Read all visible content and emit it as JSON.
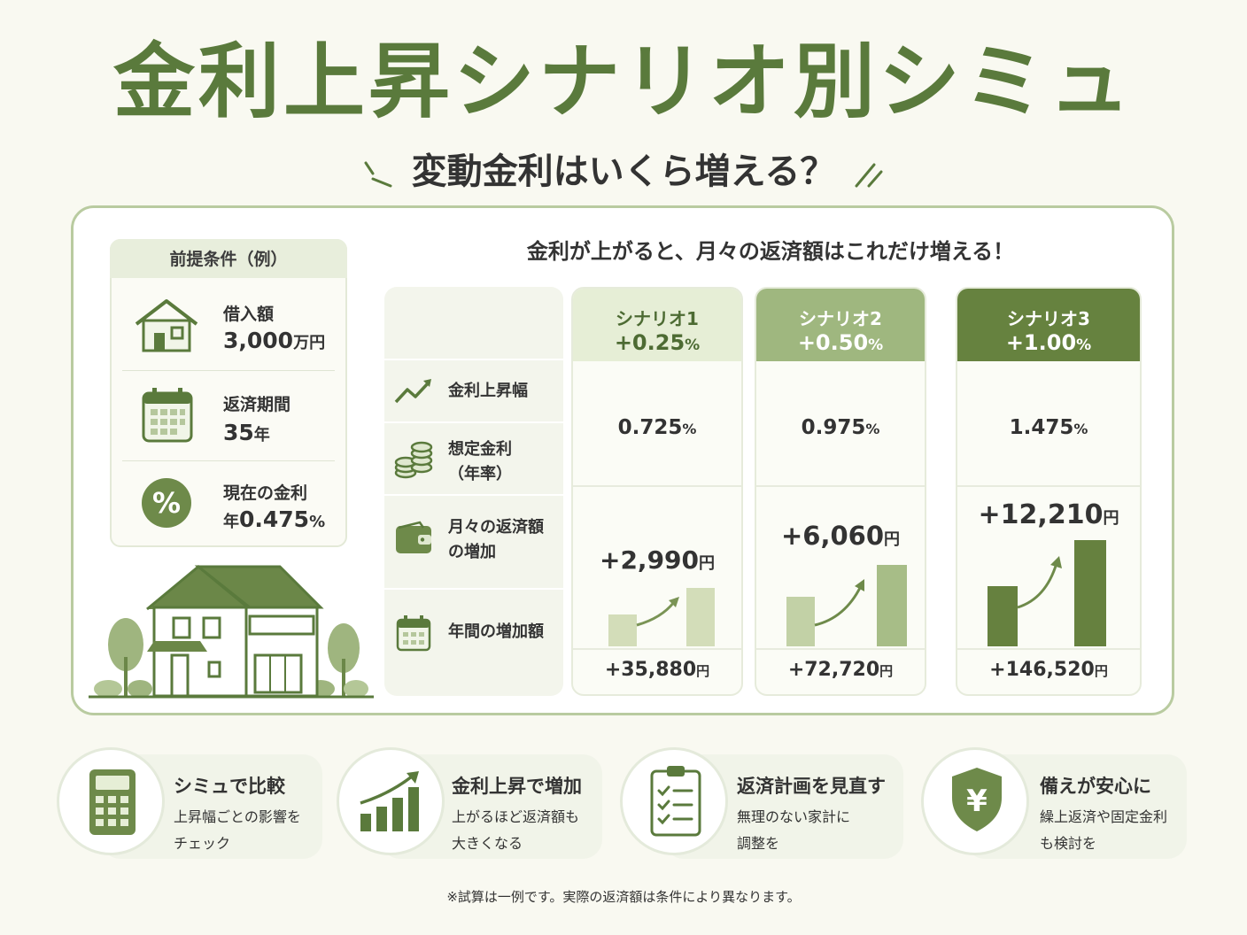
{
  "title": "金利上昇シナリオ別シミュ",
  "subtitle": "変動金利はいくら増える？",
  "conditions": {
    "header": "前提条件（例）",
    "items": [
      {
        "label": "借入額",
        "value": "3,000",
        "unit": "万円",
        "icon": "house-icon"
      },
      {
        "label": "返済期間",
        "value": "35",
        "unit": "年",
        "icon": "calendar-icon"
      },
      {
        "label": "現在の金利",
        "value_prefix": "年",
        "value": "0.475",
        "unit": "%",
        "icon": "percent-icon"
      }
    ]
  },
  "comparison_heading": "金利が上がると、月々の返済額はこれだけ増える！",
  "row_labels": [
    {
      "text": "金利上昇幅",
      "icon": "trend-up-icon"
    },
    {
      "text": "想定金利",
      "text2": "（年率）",
      "icon": "coins-icon"
    },
    {
      "text": "月々の返済額",
      "text2": "の増加",
      "icon": "wallet-icon"
    },
    {
      "text": "年間の増加額",
      "icon": "calendar-icon"
    }
  ],
  "scenarios": [
    {
      "name": "シナリオ1",
      "increase": "+0.25",
      "increase_unit": "%",
      "rate": "0.725",
      "rate_unit": "%",
      "monthly": "+2,990",
      "monthly_unit": "円",
      "annual": "+35,880",
      "annual_unit": "円",
      "head_color": "#e6eed6",
      "head_text": "#4d6b33",
      "bar_color": "#d3ddb9"
    },
    {
      "name": "シナリオ2",
      "increase": "+0.50",
      "increase_unit": "%",
      "rate": "0.975",
      "rate_unit": "%",
      "monthly": "+6,060",
      "monthly_unit": "円",
      "annual": "+72,720",
      "annual_unit": "円",
      "head_color": "#9fb77f",
      "head_text": "#ffffff",
      "bar_color": "#a7bd87"
    },
    {
      "name": "シナリオ3",
      "increase": "+1.00",
      "increase_unit": "%",
      "rate": "1.475",
      "rate_unit": "%",
      "monthly": "+12,210",
      "monthly_unit": "円",
      "annual": "+146,520",
      "annual_unit": "円",
      "head_color": "#66823f",
      "head_text": "#ffffff",
      "bar_color": "#66813f"
    }
  ],
  "bottom_cards": [
    {
      "title": "シミュで比較",
      "line1": "上昇幅ごとの影響を",
      "line2": "チェック",
      "icon": "calculator-icon"
    },
    {
      "title": "金利上昇で増加",
      "line1": "上がるほど返済額も",
      "line2": "大きくなる",
      "icon": "bar-chart-icon"
    },
    {
      "title": "返済計画を見直す",
      "line1": "無理のない家計に",
      "line2": "調整を",
      "icon": "checklist-icon"
    },
    {
      "title": "備えが安心に",
      "line1": "繰上返済や固定金利",
      "line2": "も検討を",
      "icon": "yen-shield-icon"
    }
  ],
  "footnote": "※試算は一例です。実際の返済額は条件により異なります。",
  "colors": {
    "primary": "#5a7a3c",
    "light": "#e8eedc",
    "border": "#b9cba0"
  }
}
